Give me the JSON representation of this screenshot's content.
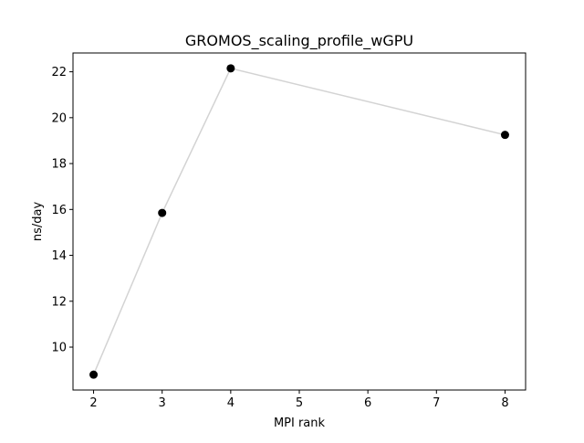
{
  "chart_data": {
    "type": "line",
    "title": "GROMOS_scaling_profile_wGPU",
    "xlabel": "MPI rank",
    "ylabel": "ns/day",
    "x": [
      2,
      3,
      4,
      8
    ],
    "y": [
      8.8,
      15.85,
      22.15,
      19.25
    ],
    "xticks": [
      "2",
      "3",
      "4",
      "5",
      "6",
      "7",
      "8"
    ],
    "yticks": [
      "10",
      "12",
      "14",
      "16",
      "18",
      "20",
      "22"
    ],
    "xlim": [
      1.7,
      8.3
    ],
    "ylim": [
      8.13,
      22.82
    ],
    "line_color": "#d3d3d3",
    "marker_color": "#000000",
    "grid": false,
    "legend": false
  }
}
